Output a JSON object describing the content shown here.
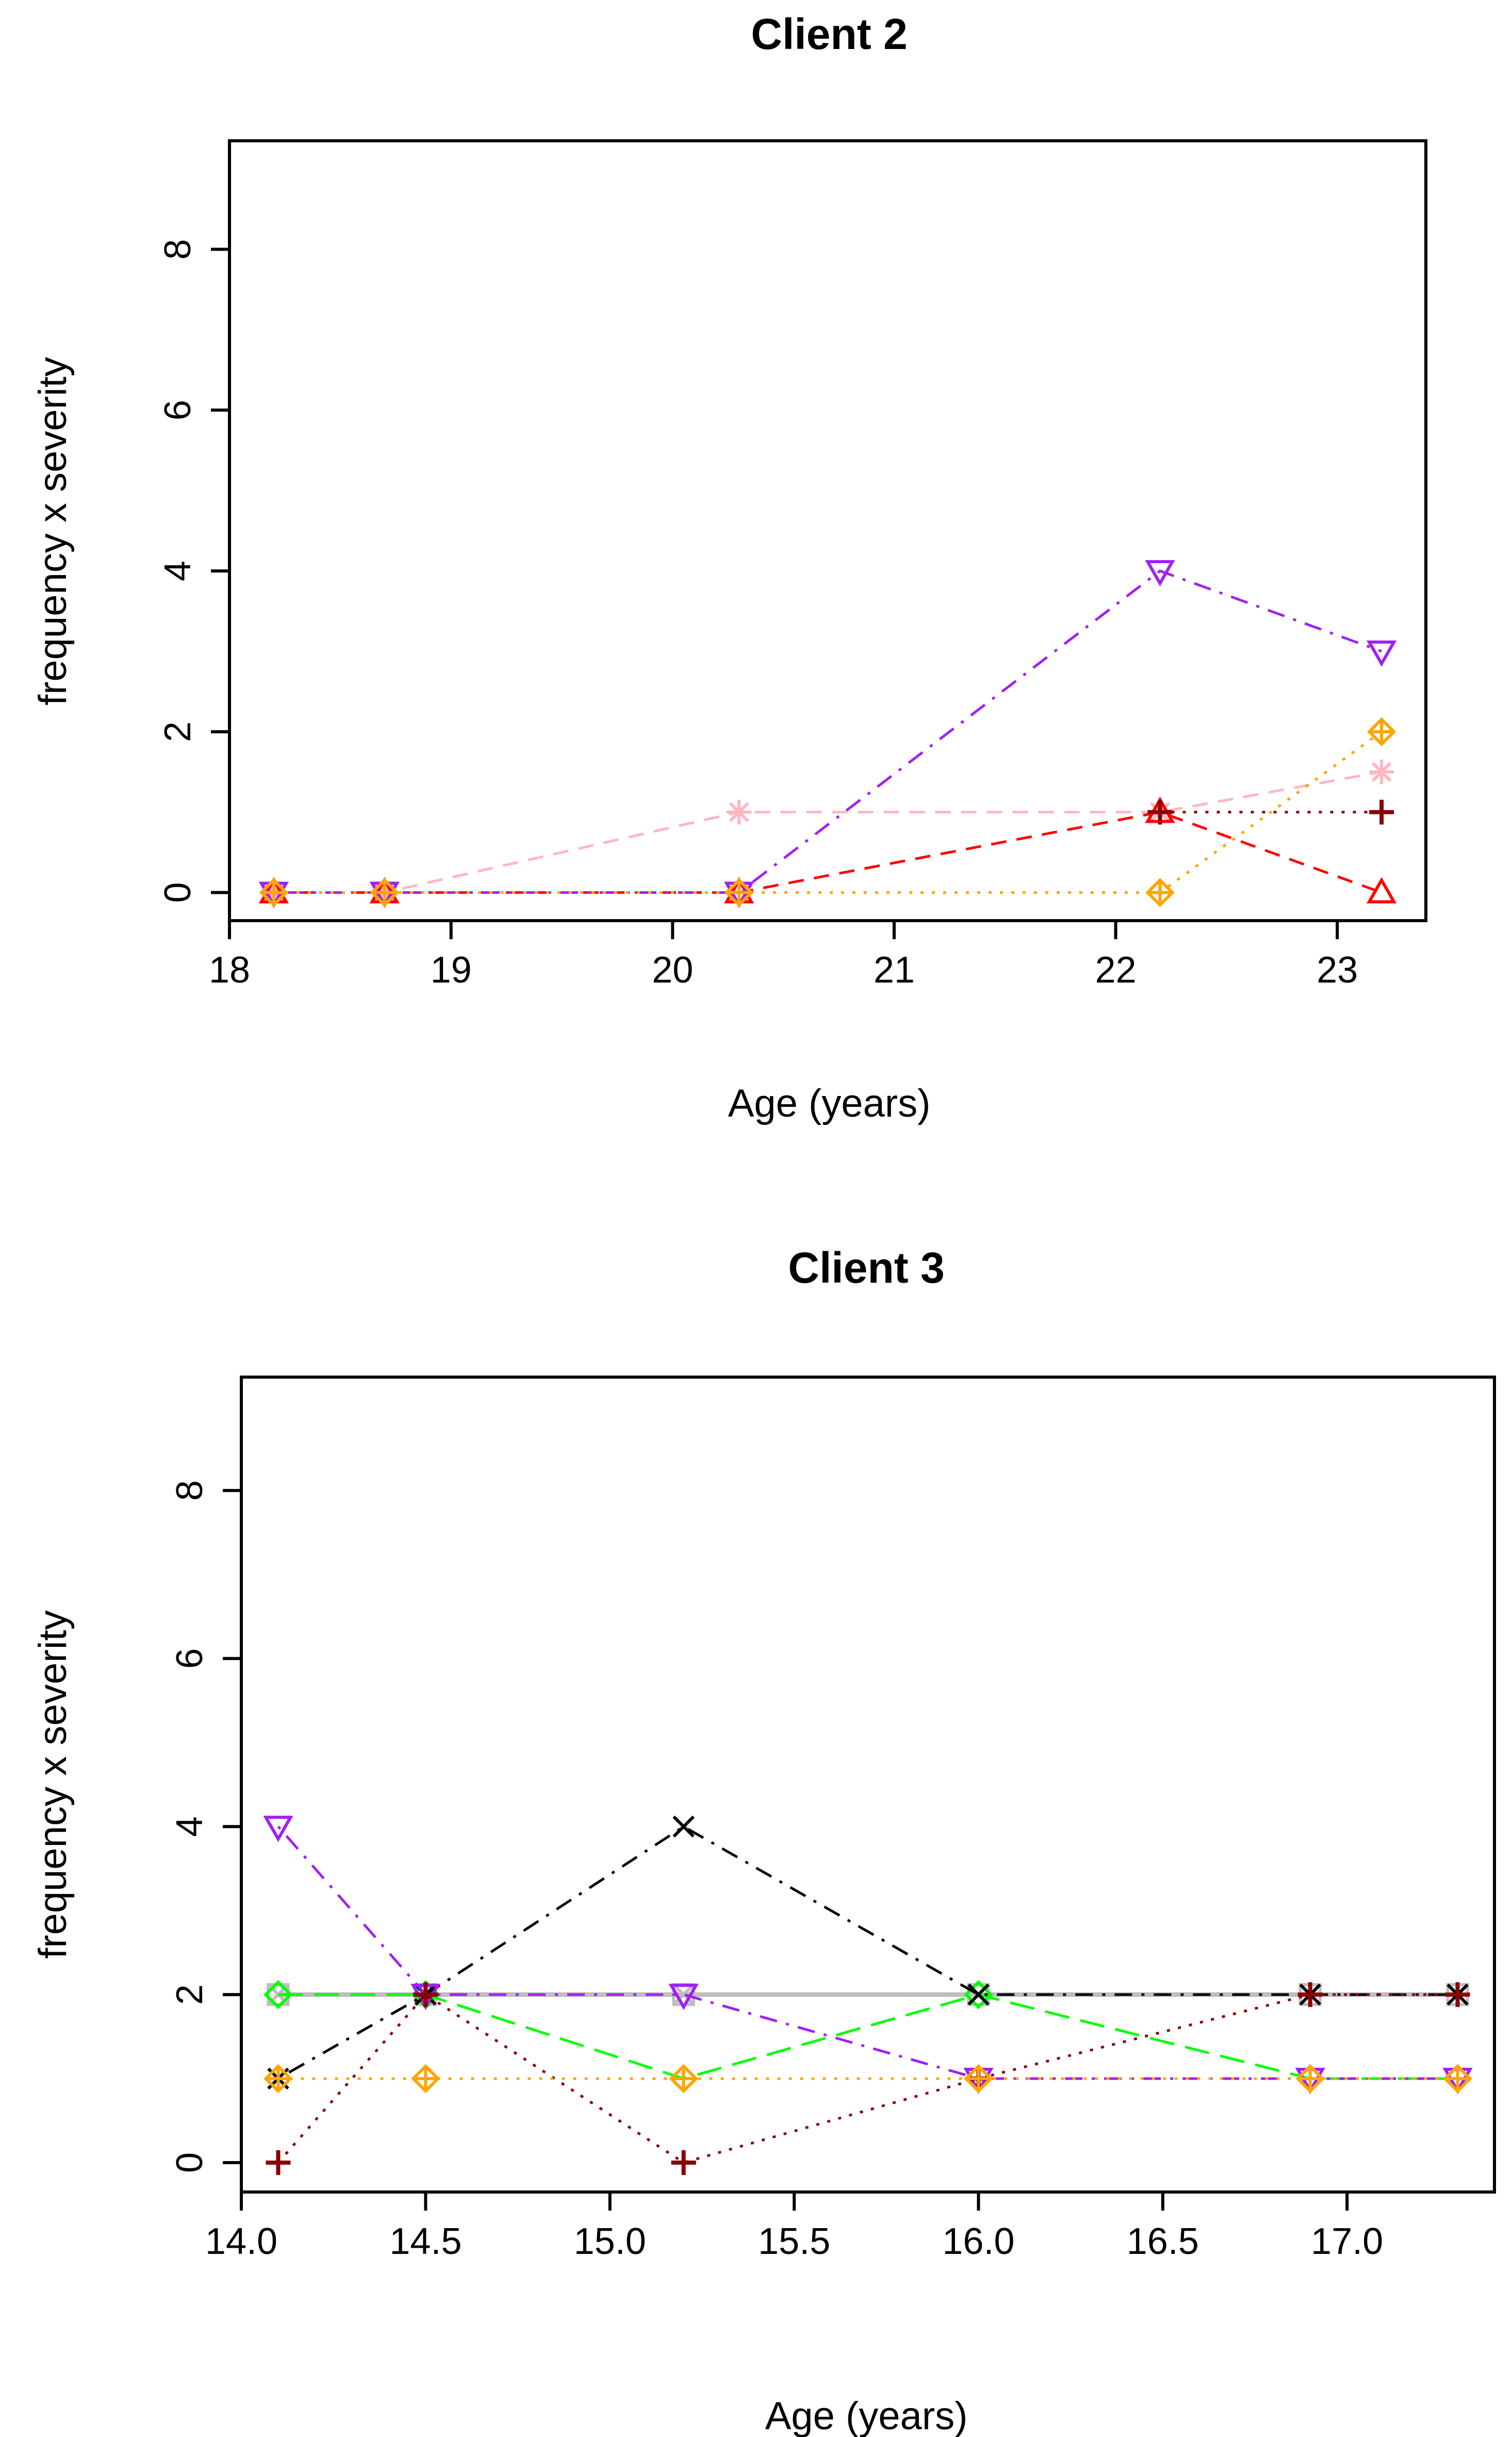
{
  "chart_data": [
    {
      "type": "line",
      "title": "Client 2",
      "xlabel": "Age (years)",
      "ylabel": "frequency x severity",
      "xlim": [
        18,
        23.4
      ],
      "ylim": [
        -0.35,
        9.35
      ],
      "x_ticks": [
        18,
        19,
        20,
        21,
        22,
        23
      ],
      "x_tick_labels": [
        "18",
        "19",
        "20",
        "21",
        "22",
        "23"
      ],
      "y_ticks": [
        0,
        2,
        4,
        6,
        8
      ],
      "y_tick_labels": [
        "0",
        "2",
        "4",
        "6",
        "8"
      ],
      "grid": false,
      "series": [
        {
          "name": "pink asterisk",
          "color": "#ffb6c1",
          "dash": "dashed",
          "marker": "asterisk",
          "x": [
            18.2,
            18.7,
            20.3,
            22.2,
            23.2
          ],
          "y": [
            0,
            0,
            1,
            1,
            1.5
          ]
        },
        {
          "name": "red triangle",
          "color": "#ff0000",
          "dash": "dashed",
          "marker": "triangle-up",
          "x": [
            18.2,
            18.7,
            20.3,
            22.2,
            23.2
          ],
          "y": [
            0,
            0,
            0,
            1,
            0
          ]
        },
        {
          "name": "dark red plus",
          "color": "#8b0000",
          "dash": "dotted",
          "marker": "plus",
          "x": [
            22.2,
            23.2
          ],
          "y": [
            1,
            1
          ]
        },
        {
          "name": "purple inverted triangle",
          "color": "#a020f0",
          "dash": "dotdash",
          "marker": "triangle-down",
          "x": [
            18.2,
            18.7,
            20.3,
            22.2,
            23.2
          ],
          "y": [
            0,
            0,
            0,
            4,
            3
          ]
        },
        {
          "name": "orange crossed diamond",
          "color": "#ffa500",
          "dash": "dotted",
          "marker": "diamond-plus",
          "x": [
            18.2,
            18.7,
            20.3,
            22.2,
            23.2
          ],
          "y": [
            0,
            0,
            0,
            0,
            2
          ]
        }
      ]
    },
    {
      "type": "line",
      "title": "Client 3",
      "xlabel": "Age (years)",
      "ylabel": "frequency x severity",
      "xlim": [
        14.0,
        17.4
      ],
      "ylim": [
        -0.35,
        9.35
      ],
      "x_ticks": [
        14.0,
        14.5,
        15.0,
        15.5,
        16.0,
        16.5,
        17.0
      ],
      "x_tick_labels": [
        "14.0",
        "14.5",
        "15.0",
        "15.5",
        "16.0",
        "16.5",
        "17.0"
      ],
      "y_ticks": [
        0,
        2,
        4,
        6,
        8
      ],
      "y_tick_labels": [
        "0",
        "2",
        "4",
        "6",
        "8"
      ],
      "grid": false,
      "series": [
        {
          "name": "gray square",
          "color": "#bebebe",
          "dash": "solid",
          "marker": "square-x",
          "x": [
            14.1,
            14.5,
            15.2,
            16.0,
            16.9,
            17.3
          ],
          "y": [
            2,
            2,
            2,
            2,
            2,
            2
          ]
        },
        {
          "name": "green diamond",
          "color": "#00ff00",
          "dash": "longdash",
          "marker": "diamond",
          "x": [
            14.1,
            14.5,
            15.2,
            16.0,
            16.9,
            17.3
          ],
          "y": [
            2,
            2,
            1,
            2,
            1,
            1
          ]
        },
        {
          "name": "black cross",
          "color": "#000000",
          "dash": "dotdash",
          "marker": "x",
          "x": [
            14.1,
            14.5,
            15.2,
            16.0,
            16.9,
            17.3
          ],
          "y": [
            1,
            2,
            4,
            2,
            2,
            2
          ]
        },
        {
          "name": "purple inverted triangle",
          "color": "#a020f0",
          "dash": "dotdash",
          "marker": "triangle-down",
          "x": [
            14.1,
            14.5,
            15.2,
            16.0,
            16.9,
            17.3
          ],
          "y": [
            4,
            2,
            2,
            1,
            1,
            1
          ]
        },
        {
          "name": "dark red plus",
          "color": "#8b0000",
          "dash": "dotted",
          "marker": "plus",
          "x": [
            14.1,
            14.5,
            15.2,
            16.0,
            16.9,
            17.3
          ],
          "y": [
            0,
            2,
            0,
            1,
            2,
            2
          ]
        },
        {
          "name": "orange crossed diamond",
          "color": "#ffa500",
          "dash": "dotted",
          "marker": "diamond-plus",
          "x": [
            14.1,
            14.5,
            15.2,
            16.0,
            16.9,
            17.3
          ],
          "y": [
            1,
            1,
            1,
            1,
            1,
            1
          ]
        }
      ]
    }
  ]
}
